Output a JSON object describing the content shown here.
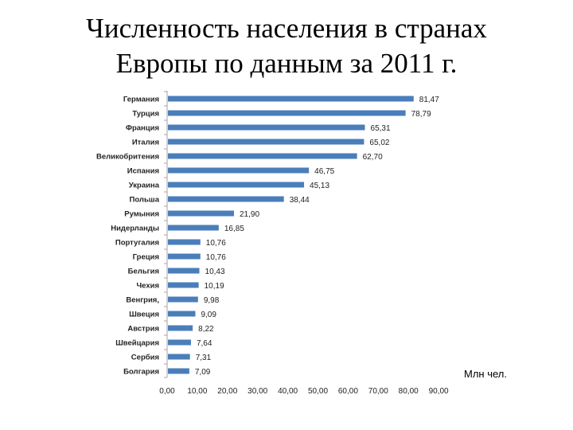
{
  "slide": {
    "title_line1": "Численность населения в странах",
    "title_line2": "Европы по данным за 2011 г."
  },
  "unit_label": "Млн чел.",
  "colors": {
    "bar": "#4a7ebb",
    "axis": "#a6a6a6",
    "text": "#222222"
  },
  "chart_data": {
    "type": "bar",
    "orientation": "horizontal",
    "title": "Численность населения в странах Европы по данным за 2011 г.",
    "xlabel": "Млн чел.",
    "ylabel": "",
    "xlim": [
      0,
      90
    ],
    "x_ticks": [
      "0,00",
      "10,00",
      "20,00",
      "30,00",
      "40,00",
      "50,00",
      "60,00",
      "70,00",
      "80,00",
      "90,00"
    ],
    "categories": [
      "Германия",
      "Турция",
      "Франция",
      "Италия",
      "Великобритения",
      "Испания",
      "Украина",
      "Польша",
      "Румыния",
      "Нидерланды",
      "Португалия",
      "Греция",
      "Бельгия",
      "Чехия",
      "Венгрия,",
      "Швеция",
      "Австрия",
      "Швейцария",
      "Сербия",
      "Болгария"
    ],
    "values": [
      81.47,
      78.79,
      65.31,
      65.02,
      62.7,
      46.75,
      45.13,
      38.44,
      21.9,
      16.85,
      10.76,
      10.76,
      10.43,
      10.19,
      9.98,
      9.09,
      8.22,
      7.64,
      7.31,
      7.09
    ],
    "value_labels": [
      "81,47",
      "78,79",
      "65,31",
      "65,02",
      "62,70",
      "46,75",
      "45,13",
      "38,44",
      "21,90",
      "16,85",
      "10,76",
      "10,76",
      "10,43",
      "10,19",
      "9,98",
      "9,09",
      "8,22",
      "7,64",
      "7,31",
      "7,09"
    ],
    "grid": false,
    "legend": "none"
  }
}
